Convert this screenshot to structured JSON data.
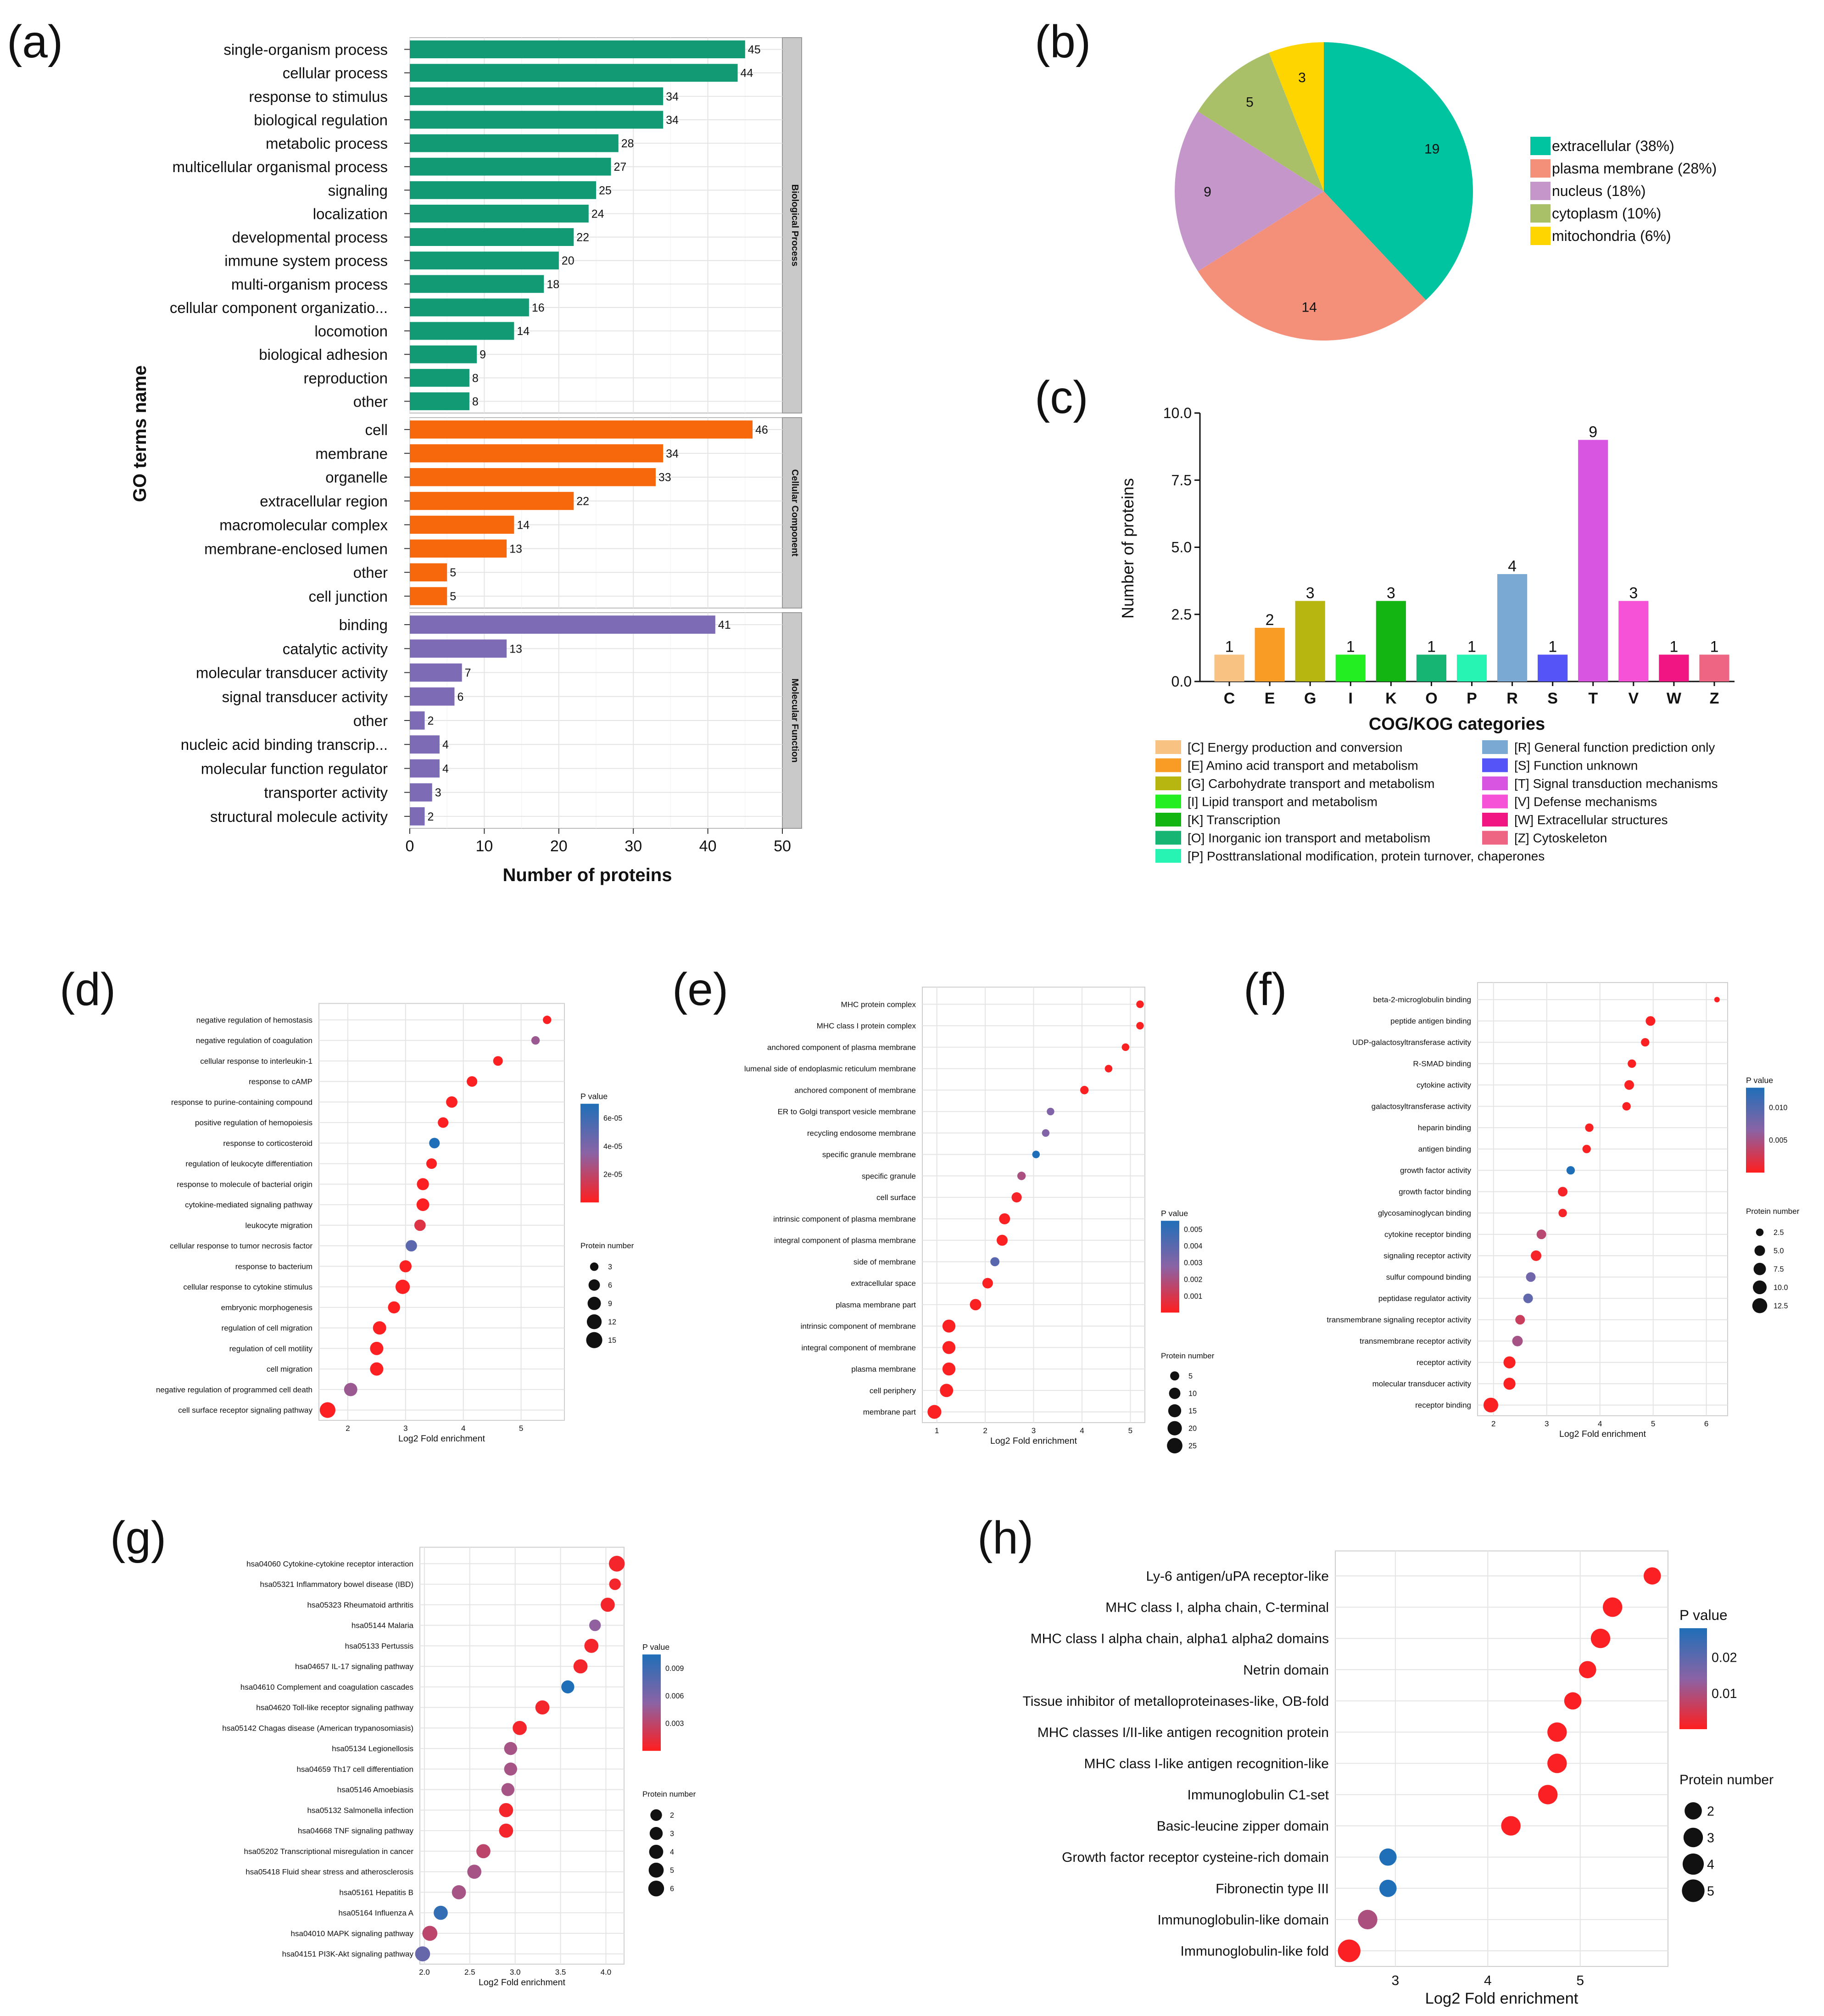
{
  "colors": {
    "bp": "#119a74",
    "cc": "#f7670b",
    "mf": "#7d6bb6",
    "red": "#ff1d1d",
    "purple": "#8a63a5",
    "blue": "#1f6fb8",
    "grid": "#e4e4e4",
    "strip": "#c9c9c9"
  },
  "chart_data": [
    {
      "id": "a",
      "panel_label": "(a)",
      "type": "bar",
      "orientation": "horizontal",
      "xlabel": "Number of proteins",
      "ylabel": "GO terms name",
      "xlim": [
        0,
        50
      ],
      "xticks": [
        0,
        10,
        20,
        30,
        40,
        50
      ],
      "facets": [
        {
          "name": "Biological Process",
          "categories": [
            "single-organism process",
            "cellular process",
            "response to stimulus",
            "biological regulation",
            "metabolic process",
            "multicellular organismal process",
            "signaling",
            "localization",
            "developmental process",
            "immune system process",
            "multi-organism process",
            "cellular component organizatio...",
            "locomotion",
            "biological adhesion",
            "reproduction",
            "other"
          ],
          "values": [
            45,
            44,
            34,
            34,
            28,
            27,
            25,
            24,
            22,
            20,
            18,
            16,
            14,
            9,
            8,
            8
          ]
        },
        {
          "name": "Cellular Component",
          "categories": [
            "cell",
            "membrane",
            "organelle",
            "extracellular region",
            "macromolecular complex",
            "membrane-enclosed lumen",
            "other",
            "cell junction"
          ],
          "values": [
            46,
            34,
            33,
            22,
            14,
            13,
            5,
            5
          ]
        },
        {
          "name": "Molecular Function",
          "categories": [
            "binding",
            "catalytic activity",
            "molecular transducer activity",
            "signal transducer activity",
            "other",
            "nucleic acid binding transcrip...",
            "molecular function regulator",
            "transporter activity",
            "structural molecule activity"
          ],
          "values": [
            41,
            13,
            7,
            6,
            2,
            4,
            4,
            3,
            2
          ]
        }
      ]
    },
    {
      "id": "b",
      "panel_label": "(b)",
      "type": "pie",
      "slices": [
        {
          "label": "extracellular (38%)",
          "value": 19,
          "color": "#00c4a0"
        },
        {
          "label": "plasma membrane (28%)",
          "value": 14,
          "color": "#f4907a"
        },
        {
          "label": "nucleus (18%)",
          "value": 9,
          "color": "#c496c9"
        },
        {
          "label": "cytoplasm (10%)",
          "value": 5,
          "color": "#a9bf68"
        },
        {
          "label": "mitochondria (6%)",
          "value": 3,
          "color": "#ffd500"
        }
      ]
    },
    {
      "id": "c",
      "panel_label": "(c)",
      "type": "bar",
      "xlabel": "COG/KOG categories",
      "ylabel": "Number of proteins",
      "ylim": [
        0,
        10
      ],
      "yticks": [
        "0.0",
        "2.5",
        "5.0",
        "7.5",
        "10.0"
      ],
      "categories": [
        "C",
        "E",
        "G",
        "I",
        "K",
        "O",
        "P",
        "R",
        "S",
        "T",
        "V",
        "W",
        "Z"
      ],
      "values": [
        1,
        2,
        3,
        1,
        3,
        1,
        1,
        4,
        1,
        9,
        3,
        1,
        1
      ],
      "colors": [
        "#f8c282",
        "#f89c26",
        "#b7b510",
        "#22ee22",
        "#13b513",
        "#17b574",
        "#27f3b3",
        "#7aa9d3",
        "#5555f7",
        "#d855e2",
        "#f652d7",
        "#f01582",
        "#ed6582"
      ],
      "legend": [
        "[C] Energy production and conversion",
        "[E] Amino acid transport and metabolism",
        "[G] Carbohydrate transport and metabolism",
        "[I] Lipid transport and metabolism",
        "[K] Transcription",
        "[O] Inorganic ion transport and metabolism",
        "[P] Posttranslational modification, protein turnover, chaperones",
        "[R] General function prediction only",
        "[S] Function unknown",
        "[T] Signal transduction mechanisms",
        "[V] Defense mechanisms",
        "[W] Extracellular structures",
        "[Z] Cytoskeleton"
      ]
    },
    {
      "id": "d",
      "panel_label": "(d)",
      "type": "scatter",
      "xlabel": "Log2 Fold enrichment",
      "xlim": [
        1.5,
        5.75
      ],
      "xticks": [
        2,
        3,
        4,
        5
      ],
      "pvalue_title": "P value",
      "pvalue_range": [
        0,
        7e-05
      ],
      "pvalue_ticks": [
        "6e-05",
        "4e-05",
        "2e-05"
      ],
      "pvalue_tick_values": [
        6e-05,
        4e-05,
        2e-05
      ],
      "size_title": "Protein number",
      "size_range": [
        2,
        16
      ],
      "size_ticks": [
        "3",
        "6",
        "9",
        "12",
        "15"
      ],
      "size_tick_values": [
        3,
        6,
        9,
        12,
        15
      ],
      "terms": [
        "negative regulation of hemostasis",
        "negative regulation of coagulation",
        "cellular response to interleukin-1",
        "response to cAMP",
        "response to purine-containing compound",
        "positive regulation of hemopoiesis",
        "response to corticosteroid",
        "regulation of leukocyte differentiation",
        "response to molecule of bacterial origin",
        "cytokine-mediated signaling pathway",
        "leukocyte migration",
        "cellular response to tumor necrosis factor",
        "response to bacterium",
        "cellular response to cytokine stimulus",
        "embryonic morphogenesis",
        "regulation of cell migration",
        "regulation of cell motility",
        "cell migration",
        "negative regulation of programmed cell death",
        "cell surface receptor signaling pathway"
      ],
      "x": [
        5.45,
        5.25,
        4.6,
        4.15,
        3.8,
        3.65,
        3.5,
        3.45,
        3.3,
        3.3,
        3.25,
        3.1,
        3.0,
        2.95,
        2.8,
        2.55,
        2.5,
        2.5,
        2.05,
        1.65
      ],
      "size": [
        3,
        3,
        4,
        5,
        6,
        5,
        5,
        5,
        7,
        8,
        6,
        6,
        7,
        11,
        7,
        9,
        9,
        9,
        9,
        14
      ],
      "p": [
        1e-06,
        3e-05,
        1e-06,
        1e-06,
        1e-06,
        1e-06,
        7e-05,
        1e-06,
        1e-06,
        1e-06,
        1e-05,
        5e-05,
        1e-06,
        1e-06,
        1e-06,
        1e-06,
        1e-06,
        1e-06,
        3e-05,
        1e-06
      ]
    },
    {
      "id": "e",
      "panel_label": "(e)",
      "type": "scatter",
      "xlabel": "Log2 Fold enrichment",
      "xlim": [
        0.7,
        5.3
      ],
      "xticks": [
        1,
        2,
        3,
        4,
        5
      ],
      "pvalue_title": "P value",
      "pvalue_range": [
        0,
        0.0055
      ],
      "pvalue_ticks": [
        "0.005",
        "0.004",
        "0.003",
        "0.002",
        "0.001"
      ],
      "pvalue_tick_values": [
        0.005,
        0.004,
        0.003,
        0.002,
        0.001
      ],
      "size_title": "Protein number",
      "size_range": [
        2,
        30
      ],
      "size_ticks": [
        "5",
        "10",
        "15",
        "20",
        "25"
      ],
      "size_tick_values": [
        5,
        10,
        15,
        20,
        25
      ],
      "terms": [
        "MHC protein complex",
        "MHC class I protein complex",
        "anchored component of plasma membrane",
        "lumenal side of endoplasmic reticulum membrane",
        "anchored component of membrane",
        "ER to Golgi transport vesicle membrane",
        "recycling endosome membrane",
        "specific granule membrane",
        "specific granule",
        "cell surface",
        "intrinsic component of plasma membrane",
        "integral component of plasma membrane",
        "side of membrane",
        "extracellular space",
        "plasma membrane part",
        "intrinsic component of membrane",
        "integral component of membrane",
        "plasma membrane",
        "cell periphery",
        "membrane part"
      ],
      "x": [
        5.2,
        5.2,
        4.9,
        4.55,
        4.05,
        3.35,
        3.25,
        3.05,
        2.75,
        2.65,
        2.4,
        2.35,
        2.2,
        2.05,
        1.8,
        1.25,
        1.25,
        1.25,
        1.2,
        0.95
      ],
      "size": [
        3,
        3,
        3,
        3,
        4,
        3,
        3,
        3,
        4,
        7,
        9,
        9,
        5,
        8,
        10,
        15,
        15,
        15,
        16,
        18
      ],
      "p": [
        0.0001,
        0.0001,
        0.0001,
        0.0001,
        0.0001,
        0.003,
        0.003,
        0.0055,
        0.002,
        0.0002,
        0.0001,
        0.0001,
        0.004,
        0.0001,
        0.0001,
        0.0001,
        0.0001,
        0.0001,
        0.0001,
        0.0001
      ]
    },
    {
      "id": "f",
      "panel_label": "(f)",
      "type": "scatter",
      "xlabel": "Log2 Fold enrichment",
      "xlim": [
        1.7,
        6.4
      ],
      "xticks": [
        2,
        3,
        4,
        5,
        6
      ],
      "pvalue_title": "P value",
      "pvalue_range": [
        0,
        0.013
      ],
      "pvalue_ticks": [
        "0.010",
        "0.005"
      ],
      "pvalue_tick_values": [
        0.01,
        0.005
      ],
      "size_title": "Protein number",
      "size_range": [
        2,
        14
      ],
      "size_ticks": [
        "2.5",
        "5.0",
        "7.5",
        "10.0",
        "12.5"
      ],
      "size_tick_values": [
        2.5,
        5,
        7.5,
        10,
        12.5
      ],
      "terms": [
        "beta-2-microglobulin binding",
        "peptide antigen binding",
        "UDP-galactosyltransferase activity",
        "R-SMAD binding",
        "cytokine activity",
        "galactosyltransferase activity",
        "heparin binding",
        "antigen binding",
        "growth factor activity",
        "growth factor binding",
        "glycosaminoglycan binding",
        "cytokine receptor binding",
        "signaling receptor activity",
        "sulfur compound binding",
        "peptidase regulator activity",
        "transmembrane signaling receptor activity",
        "transmembrane receptor activity",
        "receptor activity",
        "molecular transducer activity",
        "receptor binding"
      ],
      "x": [
        6.2,
        4.95,
        4.85,
        4.6,
        4.55,
        4.5,
        3.8,
        3.75,
        3.45,
        3.3,
        3.3,
        2.9,
        2.8,
        2.7,
        2.65,
        2.5,
        2.45,
        2.3,
        2.3,
        1.95
      ],
      "size": [
        2,
        4,
        3,
        3,
        4,
        3,
        3,
        3,
        3,
        4,
        3,
        4,
        5,
        4,
        4,
        4,
        5,
        7,
        7,
        12
      ],
      "p": [
        0.0002,
        0.0002,
        0.0002,
        0.0002,
        0.0002,
        0.0002,
        0.0002,
        0.0002,
        0.013,
        0.0005,
        0.0005,
        0.004,
        0.0005,
        0.008,
        0.009,
        0.003,
        0.005,
        0.0002,
        0.0002,
        0.0002
      ]
    },
    {
      "id": "g",
      "panel_label": "(g)",
      "type": "scatter",
      "xlabel": "Log2 Fold enrichment",
      "xlim": [
        1.95,
        4.2
      ],
      "xticks": [
        2.0,
        2.5,
        3.0,
        3.5,
        4.0
      ],
      "xtick_labels": [
        "2.0",
        "2.5",
        "3.0",
        "3.5",
        "4.0"
      ],
      "pvalue_title": "P value",
      "pvalue_range": [
        0,
        0.0105
      ],
      "pvalue_ticks": [
        "0.009",
        "0.006",
        "0.003"
      ],
      "pvalue_tick_values": [
        0.009,
        0.006,
        0.003
      ],
      "size_title": "Protein number",
      "size_range": [
        1,
        7
      ],
      "size_ticks": [
        "2",
        "3",
        "4",
        "5",
        "6"
      ],
      "size_tick_values": [
        2,
        3,
        4,
        5,
        6
      ],
      "terms": [
        "hsa04060 Cytokine-cytokine receptor interaction",
        "hsa05321 Inflammatory bowel disease (IBD)",
        "hsa05323 Rheumatoid arthritis",
        "hsa05144 Malaria",
        "hsa05133 Pertussis",
        "hsa04657 IL-17 signaling pathway",
        "hsa04610 Complement and coagulation cascades",
        "hsa04620 Toll-like receptor signaling pathway",
        "hsa05142 Chagas disease (American trypanosomiasis)",
        "hsa05134 Legionellosis",
        "hsa04659 Th17 cell differentiation",
        "hsa05146 Amoebiasis",
        "hsa05132 Salmonella infection",
        "hsa04668 TNF signaling pathway",
        "hsa05202 Transcriptional misregulation in cancer",
        "hsa05418 Fluid shear stress and atherosclerosis",
        "hsa05161 Hepatitis B",
        "hsa05164 Influenza A",
        "hsa04010 MAPK signaling pathway",
        "hsa04151 PI3K-Akt signaling pathway"
      ],
      "x": [
        4.12,
        4.1,
        4.02,
        3.88,
        3.84,
        3.72,
        3.58,
        3.3,
        3.05,
        2.95,
        2.95,
        2.92,
        2.9,
        2.9,
        2.65,
        2.55,
        2.38,
        2.18,
        2.06,
        1.98
      ],
      "size": [
        6,
        2,
        4,
        2,
        4,
        4,
        3,
        4,
        4,
        3,
        3,
        3,
        4,
        4,
        4,
        4,
        4,
        4,
        5,
        5
      ],
      "p": [
        0.0005,
        0.0005,
        0.0005,
        0.005,
        0.0005,
        0.0005,
        0.0105,
        0.0005,
        0.0005,
        0.004,
        0.004,
        0.004,
        0.0005,
        0.0005,
        0.003,
        0.004,
        0.004,
        0.0095,
        0.003,
        0.007
      ]
    },
    {
      "id": "h",
      "panel_label": "(h)",
      "type": "scatter",
      "xlabel": "Log2 Fold enrichment",
      "xlim": [
        2.35,
        5.95
      ],
      "xticks": [
        3,
        4,
        5
      ],
      "pvalue_title": "P value",
      "pvalue_range": [
        0,
        0.028
      ],
      "pvalue_ticks": [
        "0.02",
        "0.01"
      ],
      "pvalue_tick_values": [
        0.02,
        0.01
      ],
      "size_title": "Protein number",
      "size_range": [
        1,
        6
      ],
      "size_ticks": [
        "2",
        "3",
        "4",
        "5"
      ],
      "size_tick_values": [
        2,
        3,
        4,
        5
      ],
      "terms": [
        "Ly-6 antigen/uPA receptor-like",
        "MHC class I, alpha chain, C-terminal",
        "MHC class I alpha chain, alpha1 alpha2 domains",
        "Netrin domain",
        "Tissue inhibitor of metalloproteinases-like, OB-fold",
        "MHC classes I/II-like antigen recognition protein",
        "MHC class I-like antigen recognition-like",
        "Immunoglobulin C1-set",
        "Basic-leucine zipper domain",
        "Growth factor receptor cysteine-rich domain",
        "Fibronectin type III",
        "Immunoglobulin-like domain",
        "Immunoglobulin-like fold"
      ],
      "x": [
        5.78,
        5.35,
        5.22,
        5.08,
        4.92,
        4.75,
        4.75,
        4.65,
        4.25,
        2.92,
        2.92,
        2.7,
        2.5
      ],
      "size": [
        2,
        3,
        3,
        2,
        2,
        3,
        3,
        3,
        3,
        2,
        2,
        3,
        5
      ],
      "p": [
        0.0005,
        0.0005,
        0.0005,
        0.0005,
        0.0005,
        0.0005,
        0.0005,
        0.0005,
        0.0005,
        0.028,
        0.028,
        0.01,
        0.0005
      ]
    }
  ]
}
